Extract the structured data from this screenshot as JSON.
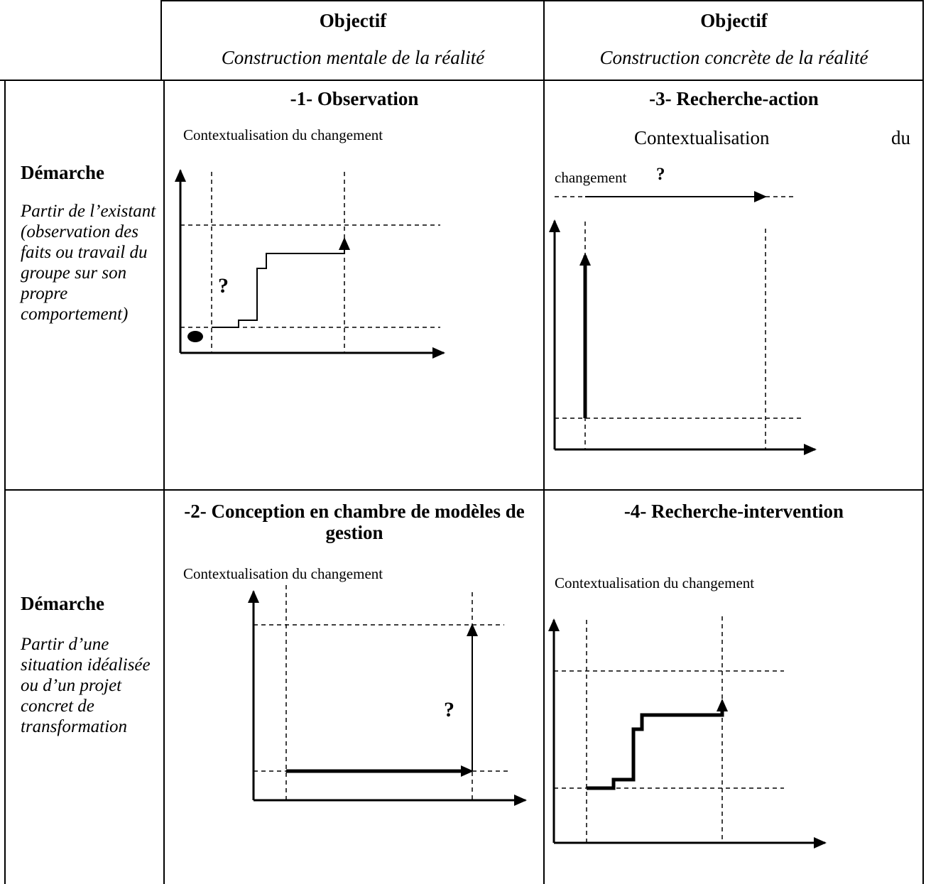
{
  "header": {
    "col1": {
      "title": "Objectif",
      "subtitle": "Construction mentale de la réalité"
    },
    "col2": {
      "title": "Objectif",
      "subtitle": "Construction concrète de la réalité"
    }
  },
  "rows": [
    {
      "title": "Démarche",
      "description": "Partir de l’existant (observation des faits ou travail du groupe sur son propre comportement)"
    },
    {
      "title": "Démarche",
      "description": "Partir d’une situation idéalisée ou d’un projet concret de transformation"
    }
  ],
  "quadrants": {
    "q1": {
      "title": "-1- Observation",
      "context": "Contextualisation du changement",
      "question_mark": "?"
    },
    "q3": {
      "title": "-3- Recherche-action",
      "context_part1": "Contextualisation",
      "context_part2": "du",
      "context_part3": "changement",
      "question_mark": "?"
    },
    "q2": {
      "title": "-2- Conception en chambre de modèles de gestion",
      "context": "Contextualisation du changement",
      "question_mark": "?"
    },
    "q4": {
      "title": "-4- Recherche-intervention",
      "context": "Contextualisation du changement"
    }
  },
  "colors": {
    "line": "#000000",
    "background": "#ffffff"
  }
}
